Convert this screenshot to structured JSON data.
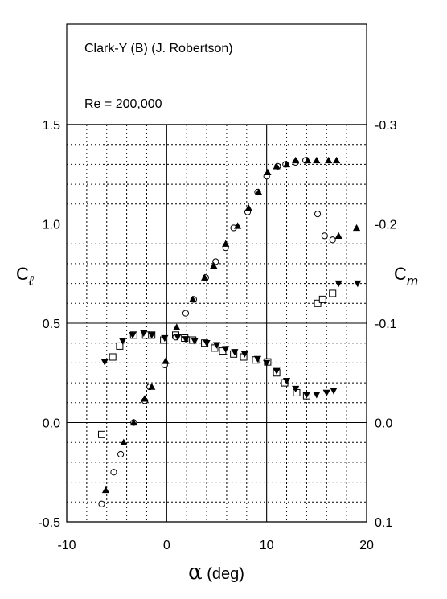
{
  "header": {
    "title": "Clark-Y (B)  (J. Robertson)",
    "reynolds": "Re = 200,000"
  },
  "axes": {
    "xlabel_symbol": "α",
    "xlabel_unit": " (deg)",
    "ylabel_left_main": "C",
    "ylabel_left_sub": "ℓ",
    "ylabel_right_main": "C",
    "ylabel_right_sub": "m"
  },
  "chart_data": {
    "type": "scatter",
    "title": "Clark-Y (B)  (J. Robertson)",
    "subtitle": "Re = 200,000",
    "xlabel": "α (deg)",
    "ylabel_left": "Cl",
    "ylabel_right": "Cm",
    "xlim": [
      -10,
      20
    ],
    "ylim_left": [
      -0.5,
      1.5
    ],
    "ylim_right": [
      0.1,
      -0.3
    ],
    "x_ticks": [
      "-10",
      "0",
      "10",
      "20"
    ],
    "y_ticks_left": [
      "-0.5",
      "0.0",
      "0.5",
      "1.0",
      "1.5"
    ],
    "y_ticks_right": [
      "0.1",
      "0.0",
      "-0.1",
      "-0.2",
      "-0.3"
    ],
    "grid": "dotted minor grid, solid major grid",
    "series": [
      {
        "axis": "left",
        "marker": "open-circle",
        "x": [
          -6.5,
          -5.3,
          -4.6,
          -3.3,
          -2.2,
          -1.7,
          -0.2,
          0.9,
          1.9,
          2.7,
          3.9,
          4.9,
          5.9,
          6.7,
          8.1,
          9.1,
          10.0,
          11.1,
          11.9,
          12.9,
          13.9,
          15.1,
          15.8,
          16.6
        ],
        "y": [
          -0.41,
          -0.25,
          -0.16,
          0.0,
          0.11,
          0.18,
          0.29,
          0.43,
          0.55,
          0.62,
          0.73,
          0.81,
          0.88,
          0.98,
          1.06,
          1.16,
          1.24,
          1.29,
          1.3,
          1.31,
          1.32,
          1.05,
          0.94,
          0.92
        ]
      },
      {
        "axis": "left",
        "marker": "filled-triangle-up",
        "x": [
          -6.1,
          -4.3,
          -3.3,
          -2.2,
          -1.5,
          -0.1,
          1.0,
          2.6,
          3.8,
          4.7,
          5.9,
          7.1,
          8.2,
          9.2,
          10.1,
          11.0,
          12.0,
          12.9,
          14.1,
          15.0,
          16.2,
          17.0,
          17.2,
          19.0
        ],
        "y": [
          -0.34,
          -0.1,
          0.0,
          0.12,
          0.18,
          0.31,
          0.48,
          0.62,
          0.73,
          0.79,
          0.9,
          0.99,
          1.08,
          1.16,
          1.26,
          1.29,
          1.3,
          1.32,
          1.32,
          1.32,
          1.32,
          1.32,
          0.94,
          0.98
        ]
      },
      {
        "axis": "right",
        "marker": "open-square",
        "x": [
          -6.5,
          -5.4,
          -4.7,
          -3.3,
          -2.1,
          -1.5,
          -0.3,
          0.9,
          1.8,
          2.6,
          3.8,
          4.8,
          5.6,
          6.7,
          7.7,
          8.9,
          10.1,
          11.0,
          11.8,
          13.0,
          14.0,
          15.1,
          15.6,
          16.6
        ],
        "y": [
          0.012,
          -0.066,
          -0.077,
          -0.088,
          -0.088,
          -0.088,
          -0.083,
          -0.088,
          -0.085,
          -0.083,
          -0.08,
          -0.075,
          -0.072,
          -0.069,
          -0.066,
          -0.063,
          -0.061,
          -0.05,
          -0.04,
          -0.03,
          -0.027,
          -0.12,
          -0.124,
          -0.13
        ]
      },
      {
        "axis": "right",
        "marker": "filled-triangle-down",
        "x": [
          -6.2,
          -4.4,
          -3.4,
          -2.3,
          -1.5,
          -0.2,
          1.1,
          1.9,
          2.8,
          4.0,
          5.0,
          5.9,
          6.8,
          7.8,
          9.1,
          10.0,
          11.0,
          12.0,
          12.9,
          14.0,
          15.0,
          16.0,
          16.7,
          17.2,
          19.1
        ],
        "y": [
          -0.061,
          -0.082,
          -0.088,
          -0.09,
          -0.088,
          -0.085,
          -0.086,
          -0.084,
          -0.082,
          -0.08,
          -0.078,
          -0.074,
          -0.071,
          -0.069,
          -0.064,
          -0.06,
          -0.052,
          -0.042,
          -0.034,
          -0.028,
          -0.028,
          -0.03,
          -0.032,
          -0.14,
          -0.14
        ]
      }
    ]
  }
}
